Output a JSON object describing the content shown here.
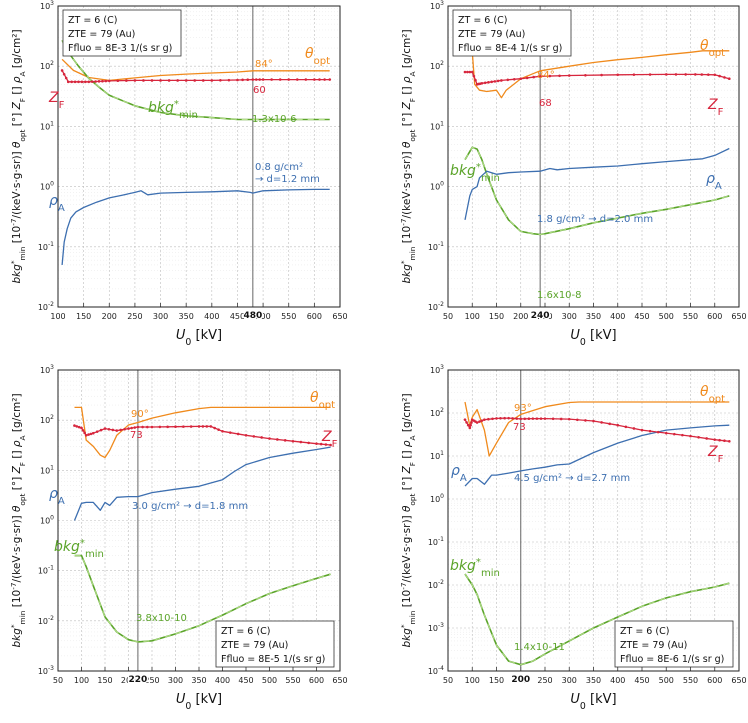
{
  "figure_title": "",
  "chart_data": [
    {
      "type": "line",
      "panel": "top-left",
      "xlabel": "U0 [kV]",
      "ylabel": "bkg*min [10^-7/(keV·s·g·sr)]   θopt [°]   ZF []   ρA [g/cm²]",
      "xlim": [
        100,
        650
      ],
      "ylim_log10": [
        -2,
        3
      ],
      "x_ticks": [
        "100",
        "150",
        "200",
        "250",
        "300",
        "350",
        "400",
        "450",
        "500",
        "550",
        "600",
        "650"
      ],
      "y_ticks": [
        "10-2",
        "10-1",
        "100",
        "101",
        "102",
        "103"
      ],
      "legend_lines": [
        "ZT = 6 (C)",
        "ZTE = 79 (Au)",
        "Ffluo = 8E-3 1/(s sr g)"
      ],
      "legend_position": "top-left",
      "marker_x": 480,
      "marker_label": "480",
      "annotations": {
        "theta": "84°",
        "zf": "60",
        "bkg": "1.3x10-6",
        "rho": "0.8 g/cm²\n→ d=1.2 mm"
      },
      "series": [
        {
          "name": "θopt",
          "label": "θopt",
          "color": "#f08a1c",
          "x": [
            108,
            130,
            160,
            200,
            250,
            300,
            350,
            400,
            450,
            480,
            500,
            550,
            600,
            630
          ],
          "y": [
            130,
            85,
            65,
            58,
            64,
            70,
            74,
            77,
            80,
            84,
            84,
            84,
            84,
            84
          ]
        },
        {
          "name": "ZF",
          "label": "ZF",
          "color": "#d7263d",
          "markers": true,
          "x": [
            108,
            120,
            140,
            160,
            180,
            200,
            250,
            300,
            350,
            400,
            450,
            480,
            500,
            550,
            600,
            630
          ],
          "y": [
            85,
            55,
            55,
            55,
            56,
            57,
            58,
            58,
            58,
            58,
            59,
            60,
            60,
            60,
            60,
            60
          ]
        },
        {
          "name": "bkg*min",
          "label": "bkg*min",
          "color": "#5ba42a",
          "dashed": true,
          "x": [
            108,
            120,
            140,
            160,
            180,
            200,
            250,
            300,
            350,
            400,
            450,
            480,
            500,
            550,
            600,
            630
          ],
          "y": [
            270,
            170,
            100,
            63,
            45,
            33,
            22,
            17,
            15,
            14,
            13,
            13,
            13,
            13,
            13,
            13
          ]
        },
        {
          "name": "ρA",
          "label": "ρA",
          "color": "#3d6fb0",
          "x": [
            108,
            112,
            118,
            125,
            135,
            150,
            175,
            200,
            225,
            250,
            262,
            275,
            300,
            350,
            400,
            450,
            475,
            480,
            500,
            550,
            600,
            630
          ],
          "y": [
            0.05,
            0.12,
            0.2,
            0.3,
            0.38,
            0.45,
            0.55,
            0.65,
            0.72,
            0.8,
            0.85,
            0.73,
            0.78,
            0.8,
            0.82,
            0.85,
            0.8,
            0.78,
            0.85,
            0.88,
            0.9,
            0.9
          ]
        }
      ]
    },
    {
      "type": "line",
      "panel": "top-right",
      "xlabel": "U0 [kV]",
      "ylabel": "bkg*min [10^-7/(keV·s·g·sr)]   θopt [°]   ZF []   ρA [g/cm²]",
      "xlim": [
        50,
        650
      ],
      "ylim_log10": [
        -2,
        3
      ],
      "x_ticks": [
        "50",
        "100",
        "150",
        "200",
        "250",
        "300",
        "350",
        "400",
        "450",
        "500",
        "550",
        "600",
        "650"
      ],
      "y_ticks": [
        "10-2",
        "10-1",
        "100",
        "101",
        "102",
        "103"
      ],
      "legend_lines": [
        "ZT = 6 (C)",
        "ZTE = 79 (Au)",
        "Ffluo = 8E-4 1/(s sr g)"
      ],
      "legend_position": "top-left",
      "marker_x": 240,
      "marker_label": "240",
      "annotations": {
        "theta": "84°",
        "zf": "68",
        "bkg": "1.6x10-8",
        "rho": "1.8 g/cm² → d=2.0 mm"
      },
      "series": [
        {
          "name": "θopt",
          "label": "θopt",
          "color": "#f08a1c",
          "x": [
            85,
            100,
            105,
            115,
            130,
            150,
            160,
            170,
            200,
            240,
            300,
            350,
            400,
            450,
            500,
            550,
            575,
            600,
            630
          ],
          "y": [
            170,
            170,
            50,
            40,
            38,
            40,
            30,
            40,
            62,
            84,
            100,
            115,
            128,
            140,
            155,
            170,
            180,
            180,
            180
          ]
        },
        {
          "name": "ZF",
          "label": "ZF",
          "color": "#d7263d",
          "markers": true,
          "x": [
            85,
            100,
            110,
            120,
            140,
            160,
            200,
            240,
            300,
            400,
            500,
            560,
            600,
            630
          ],
          "y": [
            80,
            80,
            50,
            52,
            55,
            58,
            62,
            68,
            70,
            72,
            73,
            73,
            72,
            62
          ]
        },
        {
          "name": "bkg*min",
          "label": "bkg*min",
          "color": "#5ba42a",
          "dashed": true,
          "x": [
            85,
            100,
            110,
            120,
            130,
            150,
            175,
            200,
            225,
            240,
            250,
            300,
            350,
            400,
            450,
            500,
            550,
            600,
            630
          ],
          "y": [
            2.8,
            4.5,
            4.2,
            2.8,
            1.6,
            0.6,
            0.28,
            0.18,
            0.165,
            0.16,
            0.165,
            0.2,
            0.25,
            0.3,
            0.36,
            0.42,
            0.5,
            0.6,
            0.7
          ]
        },
        {
          "name": "ρA",
          "label": "ρA",
          "color": "#3d6fb0",
          "x": [
            85,
            95,
            100,
            110,
            115,
            130,
            150,
            175,
            200,
            240,
            260,
            275,
            300,
            350,
            400,
            450,
            500,
            550,
            575,
            600,
            630
          ],
          "y": [
            0.28,
            0.7,
            0.9,
            1.0,
            1.4,
            1.8,
            1.6,
            1.7,
            1.75,
            1.8,
            2.0,
            1.9,
            2.0,
            2.1,
            2.2,
            2.4,
            2.6,
            2.8,
            2.9,
            3.3,
            4.3
          ]
        }
      ]
    },
    {
      "type": "line",
      "panel": "bottom-left",
      "xlabel": "U0 [kV]",
      "ylabel": "bkg*min [10^-7/(keV·s·g·sr)]   θopt [°]   ZF []   ρA [g/cm²]",
      "xlim": [
        50,
        650
      ],
      "ylim_log10": [
        -3,
        3
      ],
      "x_ticks": [
        "50",
        "100",
        "150",
        "200",
        "250",
        "300",
        "350",
        "400",
        "450",
        "500",
        "550",
        "600",
        "650"
      ],
      "y_ticks": [
        "10-3",
        "10-2",
        "10-1",
        "100",
        "101",
        "102",
        "103"
      ],
      "legend_lines": [
        "ZT = 6 (C)",
        "ZTE = 79 (Au)",
        "Ffluo = 8E-5 1/(s sr g)"
      ],
      "legend_position": "bottom-right",
      "marker_x": 220,
      "marker_label": "220",
      "annotations": {
        "theta": "90°",
        "zf": "73",
        "bkg": "3.8x10-10",
        "rho": "3.0 g/cm² → d=1.8 mm"
      },
      "series": [
        {
          "name": "θopt",
          "label": "θopt",
          "color": "#f08a1c",
          "x": [
            85,
            100,
            110,
            125,
            140,
            150,
            160,
            175,
            200,
            220,
            250,
            300,
            350,
            375,
            400,
            450,
            500,
            550,
            600,
            630
          ],
          "y": [
            180,
            180,
            40,
            30,
            20,
            18,
            25,
            50,
            80,
            90,
            110,
            140,
            170,
            180,
            180,
            180,
            180,
            180,
            180,
            180
          ]
        },
        {
          "name": "ZF",
          "label": "ZF",
          "color": "#d7263d",
          "markers": true,
          "x": [
            85,
            100,
            110,
            125,
            150,
            175,
            200,
            220,
            250,
            300,
            350,
            375,
            400,
            450,
            500,
            550,
            600,
            630
          ],
          "y": [
            78,
            70,
            50,
            55,
            68,
            62,
            68,
            73,
            73,
            74,
            75,
            75,
            60,
            50,
            43,
            38,
            34,
            32
          ]
        },
        {
          "name": "bkg*min",
          "label": "bkg*min",
          "color": "#5ba42a",
          "dashed": true,
          "x": [
            85,
            100,
            110,
            125,
            150,
            175,
            200,
            220,
            250,
            300,
            350,
            400,
            450,
            500,
            550,
            600,
            630
          ],
          "y": [
            0.2,
            0.2,
            0.12,
            0.05,
            0.012,
            0.006,
            0.0042,
            0.0038,
            0.004,
            0.0055,
            0.008,
            0.013,
            0.022,
            0.035,
            0.05,
            0.07,
            0.085
          ]
        },
        {
          "name": "ρA",
          "label": "ρA",
          "color": "#3d6fb0",
          "x": [
            85,
            100,
            110,
            125,
            140,
            150,
            160,
            175,
            200,
            220,
            250,
            300,
            350,
            400,
            425,
            450,
            500,
            550,
            600,
            630
          ],
          "y": [
            1.0,
            2.2,
            2.3,
            2.3,
            1.6,
            2.3,
            2.0,
            2.9,
            3.0,
            3.0,
            3.6,
            4.2,
            4.8,
            6.5,
            9.5,
            13,
            18,
            22,
            26,
            29
          ]
        }
      ]
    },
    {
      "type": "line",
      "panel": "bottom-right",
      "xlabel": "U0 [kV]",
      "ylabel": "bkg*min [10^-7/(keV·s·g·sr)]   θopt [°]   ZF []   ρA [g/cm²]",
      "xlim": [
        50,
        650
      ],
      "ylim_log10": [
        -4,
        3
      ],
      "x_ticks": [
        "50",
        "100",
        "150",
        "200",
        "250",
        "300",
        "350",
        "400",
        "450",
        "500",
        "550",
        "600",
        "650"
      ],
      "y_ticks": [
        "10-4",
        "10-3",
        "10-2",
        "10-1",
        "100",
        "101",
        "102",
        "103"
      ],
      "legend_lines": [
        "ZT = 6 (C)",
        "ZTE = 79 (Au)",
        "Ffluo = 8E-6 1/(s sr g)"
      ],
      "legend_position": "bottom-right",
      "marker_x": 200,
      "marker_label": "200",
      "annotations": {
        "theta": "93°",
        "zf": "73",
        "bkg": "1.4x10-11",
        "rho": "4.5 g/cm² → d=2.7 mm"
      },
      "series": [
        {
          "name": "θopt",
          "label": "θopt",
          "color": "#f08a1c",
          "x": [
            85,
            95,
            100,
            110,
            125,
            135,
            150,
            175,
            200,
            250,
            300,
            320,
            350,
            400,
            450,
            500,
            550,
            600,
            630
          ],
          "y": [
            180,
            50,
            80,
            120,
            40,
            10,
            20,
            60,
            93,
            140,
            175,
            180,
            180,
            180,
            180,
            180,
            180,
            180,
            180
          ]
        },
        {
          "name": "ZF",
          "label": "ZF",
          "color": "#d7263d",
          "markers": true,
          "x": [
            85,
            95,
            100,
            110,
            125,
            150,
            175,
            200,
            225,
            250,
            300,
            350,
            400,
            450,
            500,
            550,
            600,
            630
          ],
          "y": [
            70,
            45,
            70,
            60,
            70,
            75,
            76,
            73,
            74,
            74,
            72,
            65,
            52,
            40,
            34,
            29,
            24,
            22
          ]
        },
        {
          "name": "bkg*min",
          "label": "bkg*min",
          "color": "#5ba42a",
          "dashed": true,
          "x": [
            85,
            100,
            110,
            125,
            150,
            175,
            200,
            225,
            250,
            300,
            350,
            400,
            450,
            500,
            550,
            600,
            630
          ],
          "y": [
            0.018,
            0.01,
            0.006,
            0.002,
            0.0004,
            0.00017,
            0.00014,
            0.00017,
            0.00025,
            0.0005,
            0.001,
            0.0018,
            0.0032,
            0.005,
            0.007,
            0.009,
            0.011
          ]
        },
        {
          "name": "ρA",
          "label": "ρA",
          "color": "#3d6fb0",
          "x": [
            85,
            100,
            110,
            125,
            140,
            150,
            175,
            200,
            225,
            250,
            275,
            300,
            350,
            400,
            450,
            500,
            550,
            600,
            630
          ],
          "y": [
            2.0,
            3.0,
            3.0,
            2.2,
            3.6,
            3.6,
            4.0,
            4.5,
            5.0,
            5.5,
            6.2,
            6.5,
            12,
            20,
            30,
            40,
            45,
            50,
            52
          ]
        }
      ]
    }
  ]
}
